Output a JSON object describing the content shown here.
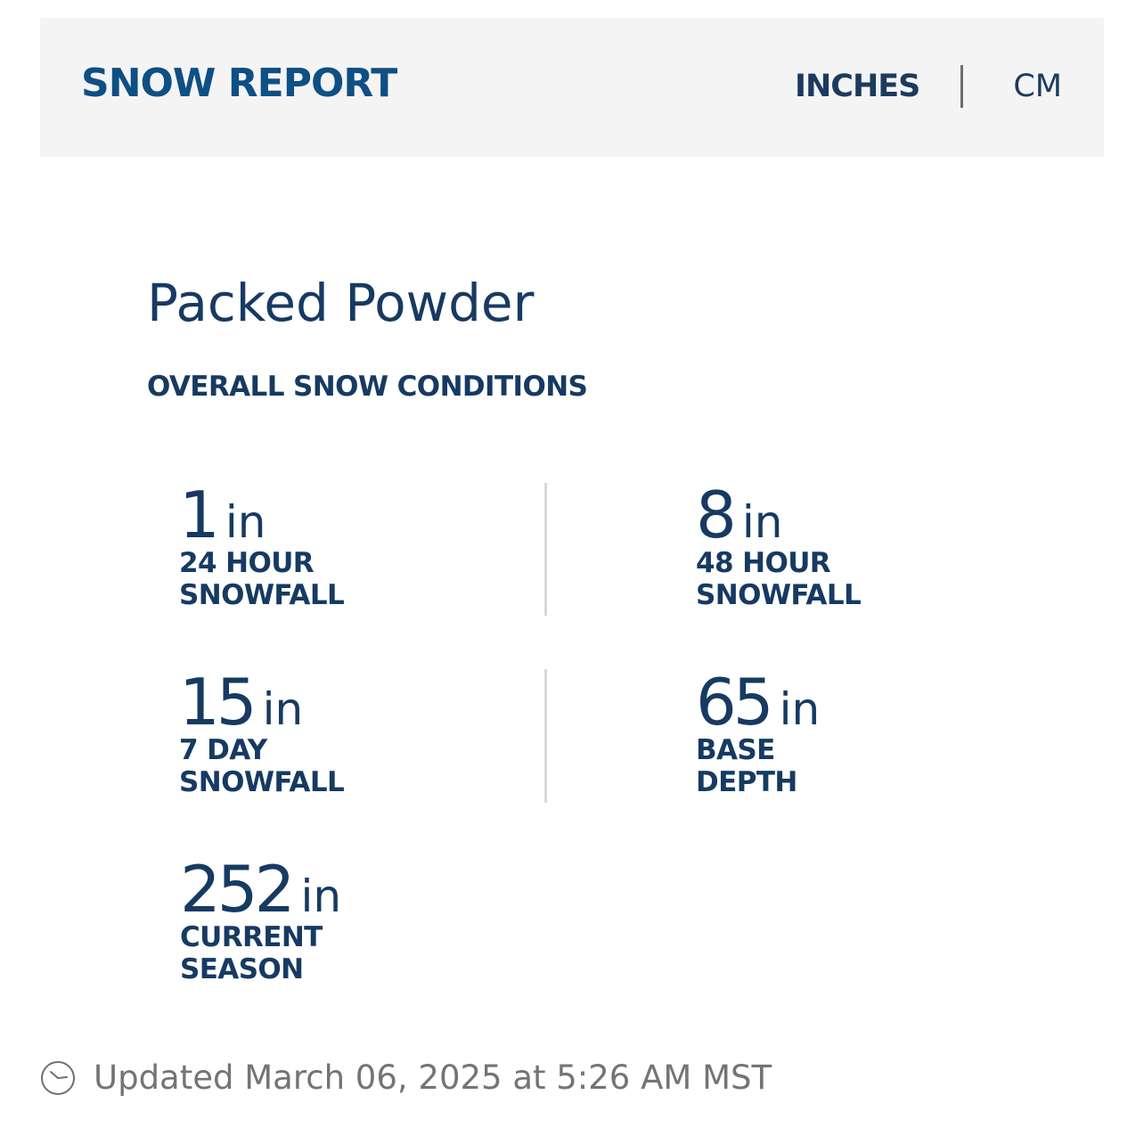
{
  "header": {
    "title": "SNOW REPORT",
    "unit_options": [
      "INCHES",
      "CM"
    ],
    "active_unit": "INCHES"
  },
  "conditions": {
    "value": "Packed Powder",
    "label": "OVERALL SNOW CONDITIONS"
  },
  "stats": [
    {
      "value": "1",
      "unit": "in",
      "label_line1": "24 HOUR",
      "label_line2": "SNOWFALL"
    },
    {
      "value": "8",
      "unit": "in",
      "label_line1": "48 HOUR",
      "label_line2": "SNOWFALL"
    },
    {
      "value": "15",
      "unit": "in",
      "label_line1": "7 DAY",
      "label_line2": "SNOWFALL"
    },
    {
      "value": "65",
      "unit": "in",
      "label_line1": "BASE",
      "label_line2": "DEPTH"
    },
    {
      "value": "252",
      "unit": "in",
      "label_line1": "CURRENT",
      "label_line2": "SEASON"
    }
  ],
  "footer": {
    "icon": "clock-icon",
    "updated": "Updated March 06, 2025 at 5:26 AM MST"
  },
  "colors": {
    "brand_blue": "#0e4f84",
    "text_navy": "#163a62",
    "header_bg": "#f4f4f4",
    "muted_text": "#747474"
  }
}
